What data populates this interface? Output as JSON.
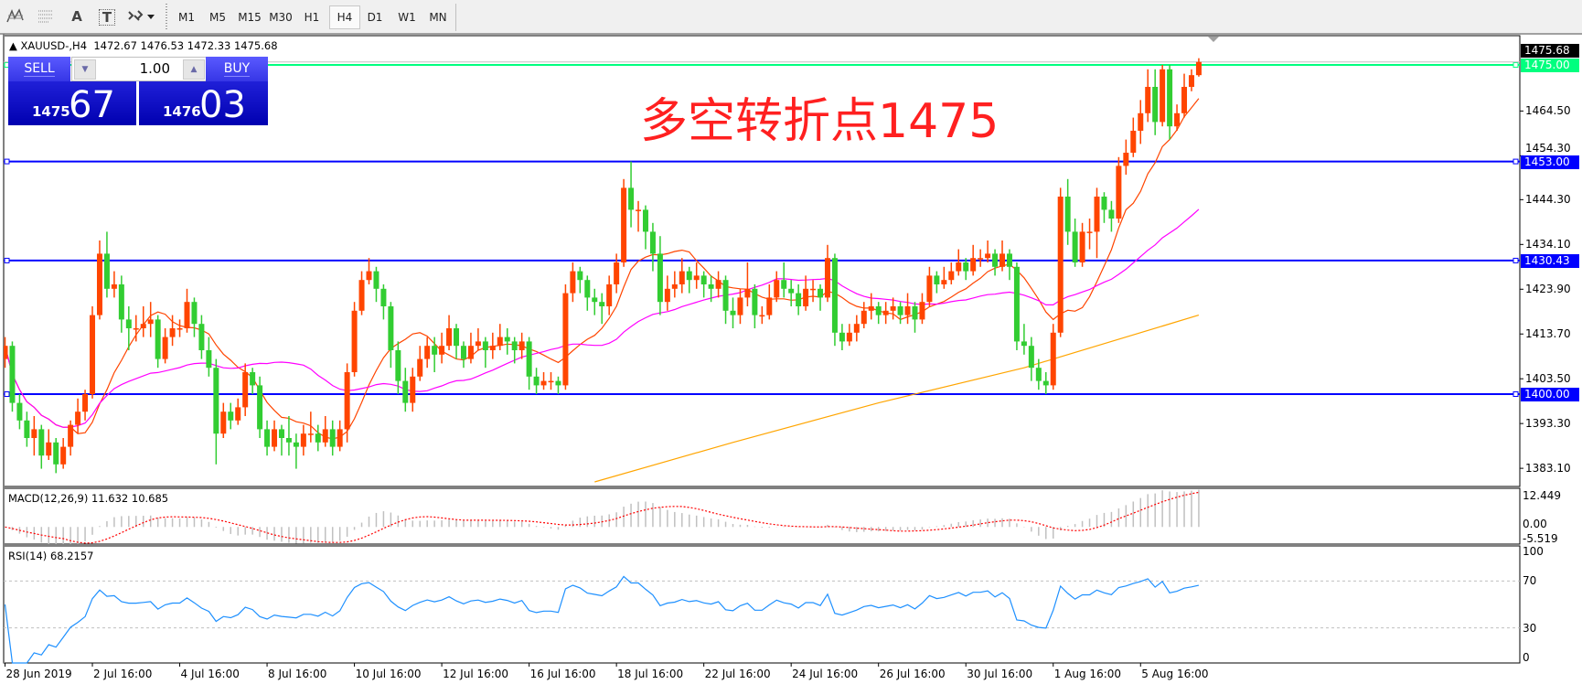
{
  "toolbar": {
    "icons": [
      "elliott-wave-icon",
      "fibonacci-icon",
      "text-icon",
      "text-label-icon",
      "arrows-icon"
    ],
    "icon_glyphs": {
      "text": "A",
      "label": "T"
    },
    "timeframes": [
      "M1",
      "M5",
      "M15",
      "M30",
      "H1",
      "H4",
      "D1",
      "W1",
      "MN"
    ],
    "active_timeframe": "H4"
  },
  "symbol_line": {
    "symbol": "XAUUSD-,H4",
    "ohlc": "1472.67 1476.53 1472.33 1475.68"
  },
  "trade_panel": {
    "sell_label": "SELL",
    "buy_label": "BUY",
    "lot": "1.00",
    "sell_price_small": "1475",
    "sell_price_big": "67",
    "buy_price_small": "1476",
    "buy_price_big": "03"
  },
  "annotation": "多空转折点1475",
  "colors": {
    "bull": "#ff4500",
    "bear": "#32cd32",
    "level_line": "#0000ff",
    "pivot_line": "#00ff7f",
    "ma_fast": "#ff4500",
    "ma_mid": "#ff00ff",
    "ma_slow": "#ffa500",
    "annotation": "#ff2020",
    "macd_hist": "#c0c0c0",
    "macd_signal": "#ff0000",
    "rsi": "#1e90ff"
  },
  "chart_data": {
    "type": "candlestick",
    "symbol": "XAUUSD-",
    "timeframe": "H4",
    "ylim": [
      1379.5,
      1482.0
    ],
    "price_ticks": [
      "1464.50",
      "1454.30",
      "1444.30",
      "1434.10",
      "1423.90",
      "1413.70",
      "1403.50",
      "1393.30",
      "1383.10"
    ],
    "current_price": "1475.68",
    "horizontal_levels": [
      {
        "value": 1475.0,
        "label": "1475.00",
        "color": "#00ff7f"
      },
      {
        "value": 1453.0,
        "label": "1453.00",
        "color": "#0000ff"
      },
      {
        "value": 1430.43,
        "label": "1430.43",
        "color": "#0000ff"
      },
      {
        "value": 1400.0,
        "label": "1400.00",
        "color": "#0000ff"
      }
    ],
    "x_labels": [
      {
        "bar": 0,
        "text": "28 Jun 2019"
      },
      {
        "bar": 12,
        "text": "2 Jul 16:00"
      },
      {
        "bar": 24,
        "text": "4 Jul 16:00"
      },
      {
        "bar": 36,
        "text": "8 Jul 16:00"
      },
      {
        "bar": 48,
        "text": "10 Jul 16:00"
      },
      {
        "bar": 60,
        "text": "12 Jul 16:00"
      },
      {
        "bar": 72,
        "text": "16 Jul 16:00"
      },
      {
        "bar": 84,
        "text": "18 Jul 16:00"
      },
      {
        "bar": 96,
        "text": "22 Jul 16:00"
      },
      {
        "bar": 108,
        "text": "24 Jul 16:00"
      },
      {
        "bar": 120,
        "text": "26 Jul 16:00"
      },
      {
        "bar": 132,
        "text": "30 Jul 16:00"
      },
      {
        "bar": 144,
        "text": "1 Aug 16:00"
      },
      {
        "bar": 156,
        "text": "5 Aug 16:00"
      }
    ],
    "open": [
      1408,
      1411,
      1398,
      1394,
      1390,
      1392,
      1386,
      1389,
      1384,
      1388,
      1393,
      1396,
      1400,
      1418,
      1432,
      1424,
      1425,
      1417,
      1415,
      1415,
      1416,
      1417,
      1408,
      1413,
      1415,
      1415,
      1421,
      1416,
      1410,
      1406,
      1391,
      1396,
      1394,
      1397,
      1405,
      1402,
      1392,
      1388,
      1392,
      1390,
      1389,
      1388,
      1391,
      1391,
      1389,
      1392,
      1388,
      1392,
      1405,
      1419,
      1426,
      1428,
      1424,
      1420,
      1410,
      1403,
      1398,
      1404,
      1408,
      1411,
      1409,
      1411,
      1415,
      1411,
      1408,
      1411,
      1412,
      1410,
      1411,
      1413,
      1412,
      1410,
      1412,
      1404,
      1402,
      1403,
      1403,
      1402,
      1423,
      1428,
      1426,
      1422,
      1421,
      1420,
      1425,
      1430,
      1447,
      1442,
      1442,
      1437,
      1432,
      1421,
      1424,
      1425,
      1428,
      1426,
      1427,
      1425,
      1424,
      1426,
      1419,
      1418,
      1422,
      1424,
      1418,
      1418,
      1422,
      1426,
      1424,
      1423,
      1420,
      1424,
      1424,
      1422,
      1431,
      1414,
      1412,
      1414,
      1416,
      1419,
      1420,
      1418,
      1419,
      1420,
      1418,
      1420,
      1417,
      1421,
      1427,
      1425,
      1426,
      1428,
      1430,
      1428,
      1431,
      1431,
      1432,
      1429,
      1432,
      1429,
      1412,
      1411,
      1406,
      1403,
      1402,
      1414,
      1445,
      1437,
      1430,
      1437,
      1437,
      1445,
      1442,
      1440,
      1452,
      1455,
      1460,
      1464,
      1470,
      1462,
      1474,
      1461,
      1464,
      1470,
      1472.67
    ],
    "high": [
      1413,
      1412,
      1400,
      1396,
      1395,
      1393,
      1392,
      1390,
      1390,
      1394,
      1399,
      1401,
      1420,
      1435,
      1437,
      1428,
      1427,
      1420,
      1418,
      1420,
      1421,
      1418,
      1415,
      1418,
      1417,
      1424,
      1422,
      1418,
      1413,
      1408,
      1398,
      1398,
      1399,
      1407,
      1406,
      1404,
      1394,
      1394,
      1393,
      1395,
      1391,
      1393,
      1396,
      1393,
      1395,
      1394,
      1394,
      1407,
      1421,
      1428,
      1431,
      1429,
      1425,
      1421,
      1412,
      1406,
      1406,
      1411,
      1413,
      1413,
      1414,
      1418,
      1416,
      1412,
      1414,
      1415,
      1413,
      1414,
      1416,
      1415,
      1413,
      1414,
      1413,
      1406,
      1405,
      1405,
      1404,
      1425,
      1430,
      1429,
      1427,
      1424,
      1423,
      1427,
      1432,
      1449,
      1453,
      1444,
      1443,
      1439,
      1436,
      1427,
      1428,
      1431,
      1429,
      1430,
      1428,
      1427,
      1428,
      1427,
      1422,
      1424,
      1430,
      1425,
      1420,
      1425,
      1428,
      1430,
      1426,
      1425,
      1427,
      1426,
      1425,
      1434,
      1432,
      1416,
      1416,
      1418,
      1421,
      1423,
      1421,
      1421,
      1422,
      1421,
      1423,
      1421,
      1423,
      1429,
      1428,
      1429,
      1430,
      1433,
      1431,
      1434,
      1433,
      1435,
      1433,
      1435,
      1433,
      1430,
      1416,
      1413,
      1408,
      1405,
      1416,
      1447,
      1449,
      1440,
      1439,
      1440,
      1447,
      1446,
      1444,
      1454,
      1458,
      1463,
      1467,
      1474,
      1474,
      1475,
      1475,
      1466,
      1473,
      1474,
      1476.53
    ],
    "low": [
      1406,
      1396,
      1392,
      1388,
      1386,
      1383,
      1385,
      1382,
      1383,
      1386,
      1391,
      1394,
      1399,
      1417,
      1422,
      1422,
      1414,
      1410,
      1412,
      1413,
      1413,
      1406,
      1407,
      1411,
      1413,
      1414,
      1413,
      1408,
      1404,
      1384,
      1390,
      1392,
      1393,
      1395,
      1400,
      1390,
      1386,
      1387,
      1386,
      1386,
      1383,
      1386,
      1389,
      1387,
      1388,
      1386,
      1387,
      1389,
      1404,
      1418,
      1425,
      1421,
      1417,
      1406,
      1400,
      1396,
      1396,
      1403,
      1406,
      1405,
      1407,
      1410,
      1408,
      1406,
      1407,
      1410,
      1406,
      1408,
      1410,
      1409,
      1407,
      1408,
      1401,
      1400,
      1401,
      1401,
      1400,
      1401,
      1421,
      1423,
      1419,
      1418,
      1416,
      1418,
      1423,
      1429,
      1438,
      1437,
      1433,
      1428,
      1418,
      1419,
      1422,
      1423,
      1423,
      1424,
      1422,
      1421,
      1422,
      1416,
      1415,
      1416,
      1420,
      1415,
      1416,
      1417,
      1421,
      1422,
      1420,
      1418,
      1419,
      1421,
      1419,
      1421,
      1411,
      1410,
      1411,
      1412,
      1415,
      1417,
      1416,
      1416,
      1417,
      1416,
      1416,
      1414,
      1416,
      1420,
      1423,
      1424,
      1425,
      1427,
      1426,
      1427,
      1429,
      1430,
      1427,
      1428,
      1426,
      1410,
      1409,
      1403,
      1401,
      1400,
      1401,
      1413,
      1434,
      1429,
      1429,
      1433,
      1431,
      1439,
      1437,
      1439,
      1450,
      1454,
      1457,
      1462,
      1459,
      1461,
      1458,
      1460,
      1463,
      1469,
      1472.33
    ],
    "close": [
      1411,
      1398,
      1394,
      1390,
      1392,
      1386,
      1389,
      1384,
      1388,
      1393,
      1396,
      1400,
      1418,
      1432,
      1424,
      1425,
      1417,
      1415,
      1415,
      1416,
      1417,
      1408,
      1413,
      1415,
      1415,
      1421,
      1416,
      1410,
      1406,
      1391,
      1396,
      1394,
      1397,
      1405,
      1402,
      1392,
      1388,
      1392,
      1390,
      1389,
      1388,
      1391,
      1391,
      1389,
      1392,
      1388,
      1392,
      1405,
      1419,
      1426,
      1428,
      1424,
      1420,
      1410,
      1403,
      1398,
      1404,
      1408,
      1411,
      1409,
      1411,
      1415,
      1411,
      1408,
      1411,
      1412,
      1410,
      1411,
      1413,
      1412,
      1410,
      1412,
      1404,
      1402,
      1403,
      1403,
      1402,
      1423,
      1428,
      1426,
      1422,
      1421,
      1420,
      1425,
      1430,
      1447,
      1442,
      1442,
      1437,
      1432,
      1421,
      1424,
      1425,
      1428,
      1426,
      1427,
      1425,
      1424,
      1426,
      1419,
      1418,
      1422,
      1424,
      1418,
      1418,
      1422,
      1426,
      1424,
      1423,
      1420,
      1424,
      1424,
      1422,
      1431,
      1414,
      1412,
      1414,
      1416,
      1419,
      1420,
      1418,
      1419,
      1420,
      1418,
      1420,
      1417,
      1421,
      1427,
      1425,
      1426,
      1428,
      1430,
      1428,
      1431,
      1431,
      1432,
      1429,
      1432,
      1429,
      1412,
      1411,
      1406,
      1403,
      1402,
      1414,
      1445,
      1437,
      1430,
      1437,
      1437,
      1445,
      1442,
      1440,
      1452,
      1455,
      1460,
      1464,
      1470,
      1462,
      1474,
      1461,
      1464,
      1470,
      1472.67,
      1475.68
    ],
    "ma_slow_points": [
      [
        81,
        1380
      ],
      [
        100,
        1389
      ],
      [
        120,
        1398
      ],
      [
        140,
        1406
      ],
      [
        150,
        1411
      ],
      [
        164,
        1418
      ]
    ],
    "macd": {
      "title": "MACD(12,26,9) 11.632 10.685",
      "ylim": [
        -5.519,
        12.449
      ],
      "ticks": [
        "12.449",
        "0.00",
        "-5.519"
      ]
    },
    "rsi": {
      "title": "RSI(14) 68.2157",
      "ylim": [
        0,
        100
      ],
      "levels": [
        30,
        70
      ],
      "ticks": [
        "100",
        "70",
        "30",
        "0"
      ]
    }
  }
}
